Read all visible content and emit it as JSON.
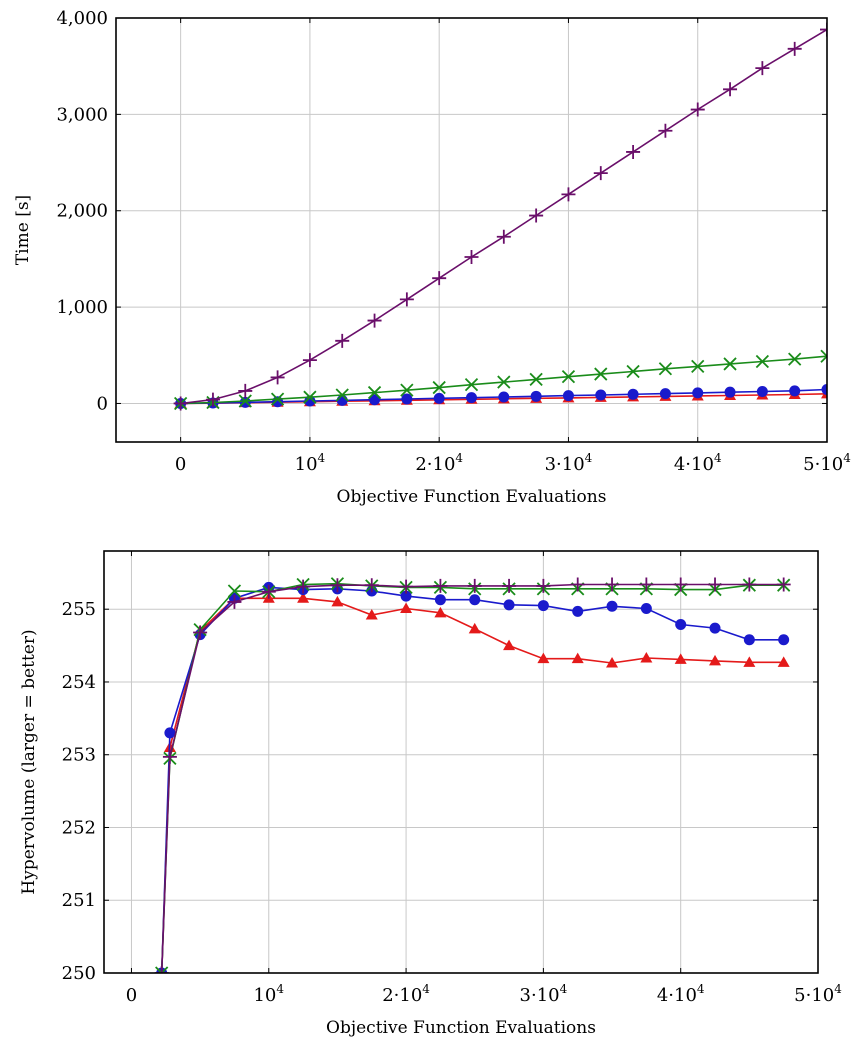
{
  "chart_data": [
    {
      "type": "line",
      "title": "",
      "xlabel": "Objective Function Evaluations",
      "ylabel": "Time [s]",
      "xlim": [
        -5000,
        50000
      ],
      "ylim": [
        -400,
        4000
      ],
      "grid": true,
      "x_ticks": [
        {
          "value": 0,
          "label": "0"
        },
        {
          "value": 10000,
          "base": "10",
          "exp": "4"
        },
        {
          "value": 20000,
          "base": "2·10",
          "exp": "4"
        },
        {
          "value": 30000,
          "base": "3·10",
          "exp": "4"
        },
        {
          "value": 40000,
          "base": "4·10",
          "exp": "4"
        },
        {
          "value": 50000,
          "base": "5·10",
          "exp": "4"
        }
      ],
      "y_ticks": [
        {
          "value": 0,
          "label": "0"
        },
        {
          "value": 1000,
          "label": "1,000"
        },
        {
          "value": 2000,
          "label": "2,000"
        },
        {
          "value": 3000,
          "label": "3,000"
        },
        {
          "value": 4000,
          "label": "4,000"
        }
      ],
      "series": [
        {
          "color": "#e41a1a",
          "marker": "triangle",
          "x": [
            0,
            2500,
            5000,
            7500,
            10000,
            12500,
            15000,
            17500,
            20000,
            22500,
            25000,
            27500,
            30000,
            32500,
            35000,
            37500,
            40000,
            42500,
            45000,
            47500,
            50000
          ],
          "values": [
            0,
            3,
            8,
            13,
            18,
            23,
            28,
            33,
            38,
            43,
            48,
            53,
            58,
            63,
            68,
            73,
            78,
            83,
            88,
            93,
            100
          ]
        },
        {
          "color": "#1a1acc",
          "marker": "circle",
          "x": [
            0,
            2500,
            5000,
            7500,
            10000,
            12500,
            15000,
            17500,
            20000,
            22500,
            25000,
            27500,
            30000,
            32500,
            35000,
            37500,
            40000,
            42500,
            45000,
            47500,
            50000
          ],
          "values": [
            0,
            5,
            11,
            18,
            25,
            32,
            39,
            46,
            53,
            60,
            67,
            74,
            81,
            88,
            95,
            102,
            110,
            117,
            124,
            131,
            145
          ]
        },
        {
          "color": "#1a8c1a",
          "marker": "x",
          "x": [
            0,
            2500,
            5000,
            7500,
            10000,
            12500,
            15000,
            17500,
            20000,
            22500,
            25000,
            27500,
            30000,
            32500,
            35000,
            37500,
            40000,
            42500,
            45000,
            47500,
            50000
          ],
          "values": [
            0,
            10,
            25,
            45,
            65,
            88,
            113,
            138,
            165,
            195,
            222,
            250,
            278,
            305,
            332,
            360,
            385,
            410,
            435,
            460,
            490
          ]
        },
        {
          "color": "#6a0f6a",
          "marker": "plus",
          "x": [
            0,
            2500,
            5000,
            7500,
            10000,
            12500,
            15000,
            17500,
            20000,
            22500,
            25000,
            27500,
            30000,
            32500,
            35000,
            37500,
            40000,
            42500,
            45000,
            47500,
            50000
          ],
          "values": [
            0,
            40,
            130,
            270,
            450,
            650,
            860,
            1080,
            1300,
            1520,
            1730,
            1950,
            2170,
            2390,
            2610,
            2830,
            3050,
            3260,
            3480,
            3680,
            3880
          ]
        }
      ]
    },
    {
      "type": "line",
      "title": "",
      "xlabel": "Objective Function Evaluations",
      "ylabel": "Hypervolume (larger = better)",
      "xlim": [
        -2000,
        50000
      ],
      "ylim": [
        250,
        255.8
      ],
      "grid": true,
      "x_ticks": [
        {
          "value": 0,
          "label": "0"
        },
        {
          "value": 10000,
          "base": "10",
          "exp": "4"
        },
        {
          "value": 20000,
          "base": "2·10",
          "exp": "4"
        },
        {
          "value": 30000,
          "base": "3·10",
          "exp": "4"
        },
        {
          "value": 40000,
          "base": "4·10",
          "exp": "4"
        },
        {
          "value": 50000,
          "base": "5·10",
          "exp": "4"
        }
      ],
      "y_ticks": [
        {
          "value": 250,
          "label": "250"
        },
        {
          "value": 251,
          "label": "251"
        },
        {
          "value": 252,
          "label": "252"
        },
        {
          "value": 253,
          "label": "253"
        },
        {
          "value": 254,
          "label": "254"
        },
        {
          "value": 255,
          "label": "255"
        }
      ],
      "series": [
        {
          "color": "#e41a1a",
          "marker": "triangle",
          "x": [
            2200,
            2800,
            5000,
            7500,
            10000,
            12500,
            15000,
            17500,
            20000,
            22500,
            25000,
            27500,
            30000,
            32500,
            35000,
            37500,
            40000,
            42500,
            45000,
            47500
          ],
          "values": [
            250,
            253.1,
            254.7,
            255.15,
            255.15,
            255.15,
            255.1,
            254.92,
            255.01,
            254.95,
            254.73,
            254.5,
            254.32,
            254.32,
            254.26,
            254.33,
            254.31,
            254.29,
            254.27,
            254.27
          ]
        },
        {
          "color": "#1a1acc",
          "marker": "circle",
          "x": [
            2200,
            2800,
            5000,
            7500,
            10000,
            12500,
            15000,
            17500,
            20000,
            22500,
            25000,
            27500,
            30000,
            32500,
            35000,
            37500,
            40000,
            42500,
            45000,
            47500
          ],
          "values": [
            250,
            253.3,
            254.65,
            255.15,
            255.3,
            255.27,
            255.28,
            255.25,
            255.18,
            255.13,
            255.13,
            255.06,
            255.05,
            254.97,
            255.04,
            255.01,
            254.79,
            254.74,
            254.58,
            254.58
          ]
        },
        {
          "color": "#1a8c1a",
          "marker": "x",
          "x": [
            2200,
            2800,
            5000,
            7500,
            10000,
            12500,
            15000,
            17500,
            20000,
            22500,
            25000,
            27500,
            30000,
            32500,
            35000,
            37500,
            40000,
            42500,
            45000,
            47500
          ],
          "values": [
            250,
            252.95,
            254.72,
            255.25,
            255.24,
            255.34,
            255.35,
            255.32,
            255.3,
            255.3,
            255.28,
            255.28,
            255.28,
            255.28,
            255.28,
            255.28,
            255.27,
            255.27,
            255.33,
            255.33
          ]
        },
        {
          "color": "#6a0f6a",
          "marker": "plus",
          "x": [
            2200,
            2800,
            5000,
            7500,
            10000,
            12500,
            15000,
            17500,
            20000,
            22500,
            25000,
            27500,
            30000,
            32500,
            35000,
            37500,
            40000,
            42500,
            45000,
            47500
          ],
          "values": [
            250,
            252.97,
            254.68,
            255.1,
            255.24,
            255.31,
            255.33,
            255.33,
            255.31,
            255.32,
            255.32,
            255.32,
            255.32,
            255.34,
            255.34,
            255.34,
            255.34,
            255.34,
            255.34,
            255.34
          ]
        }
      ]
    }
  ]
}
